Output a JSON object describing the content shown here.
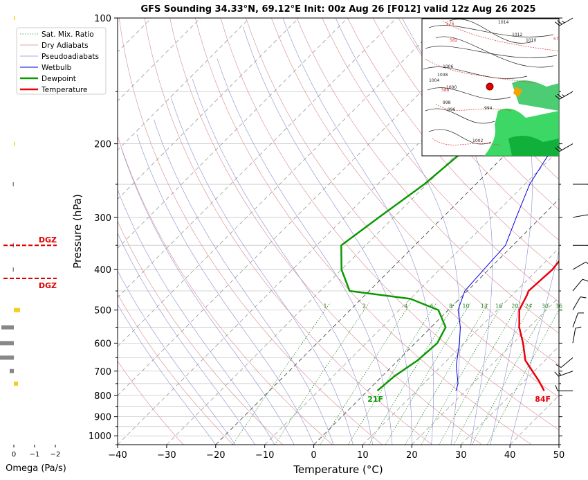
{
  "chart_data": {
    "type": "line",
    "title": "GFS Sounding 34.33°N, 69.12°E Init: 00z Aug 26 [F012] valid 12z Aug 26 2025",
    "xlabel": "Temperature (°C)",
    "ylabel": "Pressure (hPa)",
    "xlim": [
      -40,
      50
    ],
    "ylim": [
      1050,
      100
    ],
    "y_scale": "log",
    "x_ticks": [
      -40,
      -30,
      -20,
      -10,
      0,
      10,
      20,
      30,
      40,
      50
    ],
    "y_ticks": [
      100,
      200,
      300,
      400,
      500,
      600,
      700,
      800,
      900,
      1000
    ],
    "legend_position": "upper-left",
    "legend": [
      "Sat. Mix. Ratio",
      "Dry Adiabats",
      "Pseudoadiabats",
      "Wetbulb",
      "Dewpoint",
      "Temperature"
    ],
    "series": [
      {
        "name": "Temperature",
        "color": "#e8000b",
        "points": [
          [
            36,
            780
          ],
          [
            33,
            740
          ],
          [
            26,
            660
          ],
          [
            22,
            600
          ],
          [
            18,
            550
          ],
          [
            14.5,
            500
          ],
          [
            13,
            460
          ],
          [
            12.5,
            450
          ],
          [
            13,
            400
          ],
          [
            12,
            350
          ],
          [
            6,
            300
          ],
          [
            -1,
            250
          ],
          [
            -7,
            200
          ],
          [
            -12,
            150
          ],
          [
            -13.5,
            130
          ],
          [
            -14.5,
            100
          ]
        ]
      },
      {
        "name": "Dewpoint",
        "color": "#0a9900",
        "points": [
          [
            2,
            780
          ],
          [
            2.5,
            720
          ],
          [
            4,
            660
          ],
          [
            4.5,
            600
          ],
          [
            3,
            550
          ],
          [
            -2,
            500
          ],
          [
            -10,
            470
          ],
          [
            -24,
            450
          ],
          [
            -30,
            400
          ],
          [
            -35,
            350
          ],
          [
            -33,
            300
          ],
          [
            -30.5,
            250
          ],
          [
            -29,
            200
          ],
          [
            -22,
            150
          ],
          [
            -20,
            130
          ],
          [
            -16,
            100
          ]
        ]
      },
      {
        "name": "Wetbulb",
        "color": "#0000dd",
        "points": [
          [
            18,
            780
          ],
          [
            17,
            750
          ],
          [
            13,
            680
          ],
          [
            9,
            600
          ],
          [
            6,
            550
          ],
          [
            2,
            500
          ],
          [
            -0.5,
            450
          ],
          [
            -1,
            400
          ],
          [
            -1.5,
            350
          ],
          [
            -5,
            300
          ],
          [
            -9,
            250
          ],
          [
            -12,
            200
          ],
          [
            -14,
            150
          ],
          [
            -14.5,
            130
          ]
        ]
      }
    ],
    "annotations": {
      "surface_temp": "84F",
      "surface_dewpoint": "21F",
      "dgz": "DGZ"
    },
    "dgz": {
      "top_hpa": 350,
      "bottom_hpa": 420
    },
    "mixing_ratio_labels": [
      1,
      2,
      4,
      6,
      8,
      10,
      13,
      16,
      20,
      24,
      30,
      36
    ],
    "omega": {
      "xlabel": "Omega (Pa/s)",
      "ticks": [
        "0",
        "−1",
        "−2"
      ],
      "values": [
        {
          "p": 100,
          "v": 0.05
        },
        {
          "p": 200,
          "v": 0.05
        },
        {
          "p": 250,
          "v": -0.05
        },
        {
          "p": 350,
          "v": -0.05
        },
        {
          "p": 400,
          "v": -0.05
        },
        {
          "p": 500,
          "v": 0.3
        },
        {
          "p": 550,
          "v": -0.6
        },
        {
          "p": 600,
          "v": -0.9
        },
        {
          "p": 650,
          "v": -0.7
        },
        {
          "p": 700,
          "v": -0.2
        },
        {
          "p": 750,
          "v": 0.2
        }
      ]
    },
    "wind_barbs": [
      {
        "p": 100,
        "speed": 25,
        "dir": 240
      },
      {
        "p": 150,
        "speed": 25,
        "dir": 240
      },
      {
        "p": 200,
        "speed": 20,
        "dir": 240
      },
      {
        "p": 250,
        "speed": 5,
        "dir": 90
      },
      {
        "p": 300,
        "speed": 5,
        "dir": 80
      },
      {
        "p": 350,
        "speed": 5,
        "dir": 90
      },
      {
        "p": 400,
        "speed": 10,
        "dir": 60
      },
      {
        "p": 450,
        "speed": 10,
        "dir": 40
      },
      {
        "p": 500,
        "speed": 10,
        "dir": 30
      },
      {
        "p": 550,
        "speed": 10,
        "dir": 20
      },
      {
        "p": 600,
        "speed": 10,
        "dir": 10
      },
      {
        "p": 650,
        "speed": 10,
        "dir": 230
      },
      {
        "p": 700,
        "speed": 15,
        "dir": 250
      },
      {
        "p": 780,
        "speed": 10,
        "dir": 270
      }
    ],
    "inset_map": {
      "labels": [
        "576",
        "1014",
        "1012",
        "1010",
        "1008",
        "1006",
        "1004",
        "1000",
        "998",
        "996",
        "994",
        "1002",
        "588",
        "582",
        "570"
      ]
    }
  }
}
